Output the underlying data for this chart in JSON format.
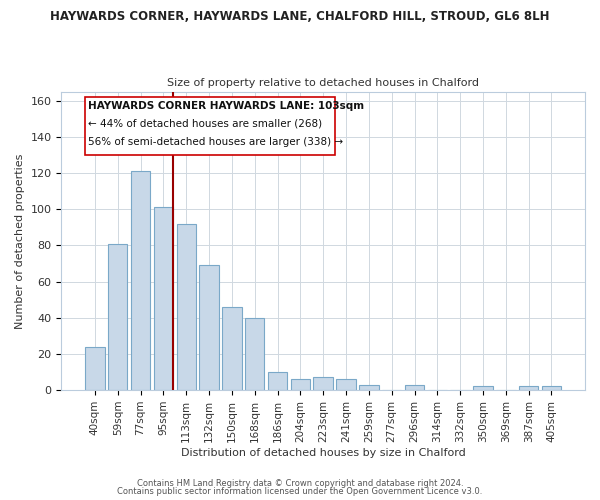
{
  "title": "HAYWARDS CORNER, HAYWARDS LANE, CHALFORD HILL, STROUD, GL6 8LH",
  "subtitle": "Size of property relative to detached houses in Chalford",
  "xlabel": "Distribution of detached houses by size in Chalford",
  "ylabel": "Number of detached properties",
  "footer_line1": "Contains HM Land Registry data © Crown copyright and database right 2024.",
  "footer_line2": "Contains public sector information licensed under the Open Government Licence v3.0.",
  "bar_labels": [
    "40sqm",
    "59sqm",
    "77sqm",
    "95sqm",
    "113sqm",
    "132sqm",
    "150sqm",
    "168sqm",
    "186sqm",
    "204sqm",
    "223sqm",
    "241sqm",
    "259sqm",
    "277sqm",
    "296sqm",
    "314sqm",
    "332sqm",
    "350sqm",
    "369sqm",
    "387sqm",
    "405sqm"
  ],
  "bar_values": [
    24,
    81,
    121,
    101,
    92,
    69,
    46,
    40,
    10,
    6,
    7,
    6,
    3,
    0,
    3,
    0,
    0,
    2,
    0,
    2,
    2
  ],
  "bar_color": "#c8d8e8",
  "bar_edge_color": "#7aa8c8",
  "ylim": [
    0,
    165
  ],
  "yticks": [
    0,
    20,
    40,
    60,
    80,
    100,
    120,
    140,
    160
  ],
  "marker_color": "#990000",
  "annotation_title": "HAYWARDS CORNER HAYWARDS LANE: 103sqm",
  "annotation_line2": "← 44% of detached houses are smaller (268)",
  "annotation_line3": "56% of semi-detached houses are larger (338) →",
  "background_color": "#ffffff",
  "grid_color": "#d0d8e0",
  "title_fontsize": 8.5,
  "subtitle_fontsize": 8.0,
  "ylabel_fontsize": 8.0,
  "xlabel_fontsize": 8.0,
  "tick_fontsize": 7.5,
  "footer_fontsize": 6.0,
  "annot_fontsize": 7.5
}
